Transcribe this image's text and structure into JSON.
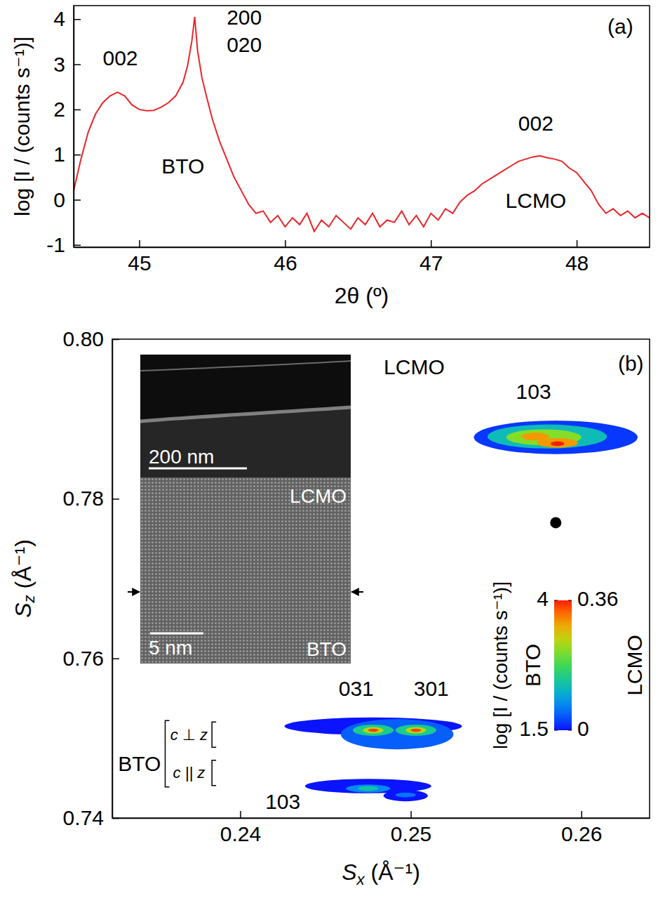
{
  "chart_data": [
    {
      "type": "line",
      "x_label": "2θ (º)",
      "y_label": "log [I / (counts s⁻¹)]",
      "xlim": [
        44.55,
        48.5
      ],
      "ylim": [
        -1.05,
        4.3
      ],
      "xticks": [
        45,
        46,
        47,
        48
      ],
      "yticks": [
        -1,
        0,
        1,
        2,
        3,
        4
      ],
      "color": "#e8262a",
      "x": [
        44.55,
        44.6,
        44.65,
        44.7,
        44.75,
        44.8,
        44.85,
        44.9,
        44.95,
        45.0,
        45.05,
        45.1,
        45.15,
        45.2,
        45.25,
        45.3,
        45.33,
        45.36,
        45.38,
        45.4,
        45.43,
        45.46,
        45.5,
        45.55,
        45.6,
        45.65,
        45.7,
        45.75,
        45.8,
        45.85,
        45.9,
        45.95,
        46.0,
        46.05,
        46.1,
        46.15,
        46.2,
        46.25,
        46.3,
        46.35,
        46.4,
        46.45,
        46.5,
        46.55,
        46.6,
        46.65,
        46.7,
        46.75,
        46.8,
        46.85,
        46.9,
        46.95,
        47.0,
        47.05,
        47.1,
        47.15,
        47.2,
        47.25,
        47.3,
        47.35,
        47.4,
        47.45,
        47.5,
        47.55,
        47.6,
        47.65,
        47.7,
        47.75,
        47.8,
        47.85,
        47.9,
        47.95,
        48.0,
        48.05,
        48.1,
        48.15,
        48.2,
        48.25,
        48.3,
        48.35,
        48.4,
        48.45,
        48.5
      ],
      "values": [
        0.2,
        0.9,
        1.5,
        1.9,
        2.15,
        2.3,
        2.38,
        2.3,
        2.1,
        2.0,
        1.97,
        1.98,
        2.05,
        2.15,
        2.3,
        2.6,
        2.95,
        3.5,
        4.05,
        3.3,
        2.7,
        2.3,
        1.8,
        1.3,
        0.9,
        0.5,
        0.2,
        -0.1,
        -0.3,
        -0.25,
        -0.5,
        -0.35,
        -0.6,
        -0.4,
        -0.55,
        -0.3,
        -0.7,
        -0.45,
        -0.6,
        -0.35,
        -0.5,
        -0.65,
        -0.4,
        -0.55,
        -0.3,
        -0.6,
        -0.45,
        -0.5,
        -0.25,
        -0.55,
        -0.35,
        -0.6,
        -0.3,
        -0.45,
        -0.2,
        -0.3,
        -0.05,
        0.1,
        0.2,
        0.35,
        0.45,
        0.55,
        0.65,
        0.75,
        0.85,
        0.9,
        0.95,
        0.97,
        0.93,
        0.9,
        0.85,
        0.7,
        0.6,
        0.4,
        0.2,
        -0.1,
        -0.3,
        -0.2,
        -0.35,
        -0.25,
        -0.4,
        -0.3,
        -0.4
      ],
      "annotations": [
        {
          "text": "002",
          "x": 44.87,
          "y": 3.1
        },
        {
          "text": "200",
          "x": 45.72,
          "y": 4.0
        },
        {
          "text": "020",
          "x": 45.72,
          "y": 3.4
        },
        {
          "text": "BTO",
          "x": 45.3,
          "y": 0.7
        },
        {
          "text": "002",
          "x": 47.72,
          "y": 1.65
        },
        {
          "text": "LCMO",
          "x": 47.72,
          "y": -0.05
        },
        {
          "text": "(a)",
          "x": 48.3,
          "y": 3.8
        }
      ]
    },
    {
      "type": "contour",
      "x_label": "Sx (Å⁻¹)",
      "y_label": "Sz (Å⁻¹)",
      "xlim": [
        0.2325,
        0.264
      ],
      "ylim": [
        0.74,
        0.8
      ],
      "xticks": [
        0.24,
        0.25,
        0.26
      ],
      "yticks": [
        0.74,
        0.76,
        0.78,
        {
          "value": 0.8,
          "label": "0.80"
        }
      ],
      "colorbar_label": "log [I / (counts s⁻¹)]",
      "maps": [
        {
          "name": "BTO",
          "crange": [
            1.5,
            4
          ],
          "cticks": [
            1.5,
            4
          ],
          "contours": [
            {
              "cx": 0.2475,
              "cz": 0.744,
              "rx": 0.0037,
              "rz": 0.0009,
              "level": 1.5
            },
            {
              "cx": 0.2497,
              "cz": 0.7428,
              "rx": 0.0013,
              "rz": 0.0007,
              "level": 1.5
            },
            {
              "cx": 0.2478,
              "cz": 0.7515,
              "rx": 0.0052,
              "rz": 0.0011,
              "level": 1.5
            },
            {
              "cx": 0.2492,
              "cz": 0.7505,
              "rx": 0.0033,
              "rz": 0.0019,
              "level": 1.8
            },
            {
              "cx": 0.2497,
              "cz": 0.7429,
              "rx": 0.0006,
              "rz": 0.0003,
              "level": 1.9
            },
            {
              "cx": 0.2475,
              "cz": 0.7437,
              "rx": 0.0013,
              "rz": 0.0005,
              "level": 2.0
            },
            {
              "cx": 0.2475,
              "cz": 0.7437,
              "rx": 0.0006,
              "rz": 0.0003,
              "level": 2.4
            },
            {
              "cx": 0.2478,
              "cz": 0.751,
              "rx": 0.0012,
              "rz": 0.0007,
              "level": 2.5
            },
            {
              "cx": 0.2503,
              "cz": 0.751,
              "rx": 0.0012,
              "rz": 0.0007,
              "level": 2.5
            },
            {
              "cx": 0.2478,
              "cz": 0.751,
              "rx": 0.0006,
              "rz": 0.0004,
              "level": 3.2
            },
            {
              "cx": 0.2503,
              "cz": 0.751,
              "rx": 0.0006,
              "rz": 0.0004,
              "level": 3.2
            },
            {
              "cx": 0.2478,
              "cz": 0.751,
              "rx": 0.0003,
              "rz": 0.0002,
              "level": 3.9
            },
            {
              "cx": 0.2503,
              "cz": 0.751,
              "rx": 0.0003,
              "rz": 0.0002,
              "level": 3.9
            }
          ]
        },
        {
          "name": "LCMO",
          "crange": [
            0,
            0.36
          ],
          "cticks": [
            0,
            0.36
          ],
          "contours": [
            {
              "cx": 0.2585,
              "cz": 0.7877,
              "rx": 0.0048,
              "rz": 0.0021,
              "level": 0.02
            },
            {
              "cx": 0.258,
              "cz": 0.7878,
              "rx": 0.0035,
              "rz": 0.0015,
              "level": 0.12
            },
            {
              "cx": 0.2578,
              "cz": 0.7877,
              "rx": 0.0022,
              "rz": 0.001,
              "level": 0.22
            },
            {
              "cx": 0.2573,
              "cz": 0.7878,
              "rx": 0.0008,
              "rz": 0.0005,
              "level": 0.3
            },
            {
              "cx": 0.2586,
              "cz": 0.787,
              "rx": 0.0012,
              "rz": 0.0006,
              "level": 0.3
            },
            {
              "cx": 0.2586,
              "cz": 0.7869,
              "rx": 0.0004,
              "rz": 0.0003,
              "level": 0.36
            }
          ]
        }
      ],
      "markers": {
        "x": [
          0.2585
        ],
        "y": [
          0.777
        ],
        "color": "#000000"
      },
      "annotations": [
        {
          "text": "LCMO",
          "x": 0.2502,
          "y": 0.7963
        },
        {
          "text": "103",
          "x": 0.2572,
          "y": 0.7932
        },
        {
          "text": "031",
          "x": 0.2468,
          "y": 0.756
        },
        {
          "text": "301",
          "x": 0.2512,
          "y": 0.756
        },
        {
          "text": "BTO",
          "x": 0.2341,
          "y": 0.7466
        },
        {
          "text": "c ⊥ z",
          "x": 0.237,
          "y": 0.7503
        },
        {
          "text": "c || z",
          "x": 0.237,
          "y": 0.7455
        },
        {
          "text": "103",
          "x": 0.2425,
          "y": 0.7418
        },
        {
          "text": "(b)",
          "x": 0.2629,
          "y": 0.7967
        }
      ],
      "insets": [
        {
          "scale_bar": "200 nm"
        },
        {
          "scale_bar": "5 nm",
          "labels": [
            "LCMO",
            "BTO"
          ]
        }
      ]
    }
  ]
}
